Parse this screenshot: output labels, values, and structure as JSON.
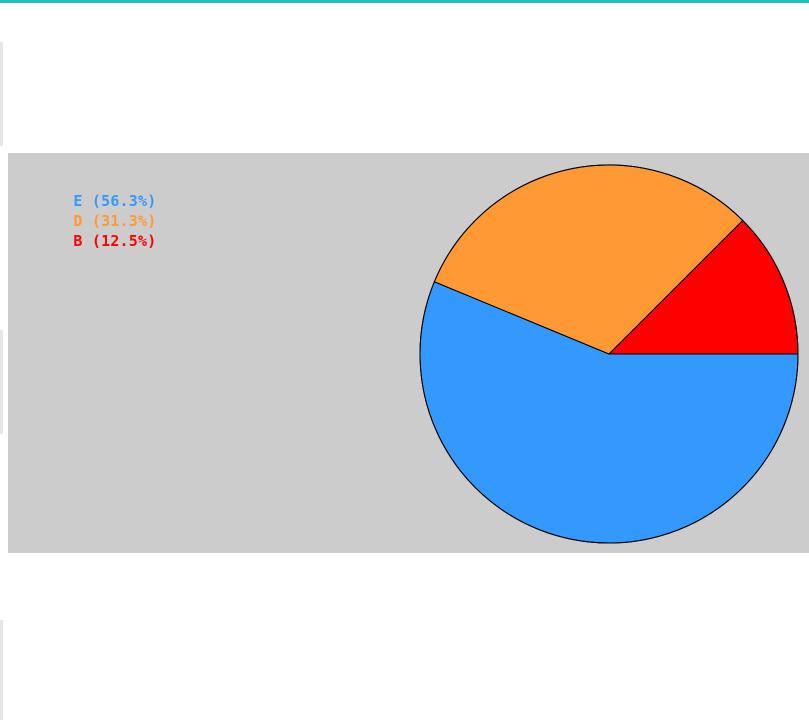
{
  "colors": {
    "accent": "#19c1c1",
    "panel_background": "#cccccc",
    "outline": "#000000"
  },
  "chart_data": {
    "type": "pie",
    "start_angle_deg": 0,
    "direction": "clockwise",
    "legend_placement": "top-left",
    "slices": [
      {
        "label": "E",
        "value": 56.3,
        "percent_label": "(56.3%)",
        "color": "#3399ff"
      },
      {
        "label": "D",
        "value": 31.3,
        "percent_label": "(31.3%)",
        "color": "#ff9933"
      },
      {
        "label": "B",
        "value": 12.5,
        "percent_label": "(12.5%)",
        "color": "#ff0000"
      }
    ]
  }
}
